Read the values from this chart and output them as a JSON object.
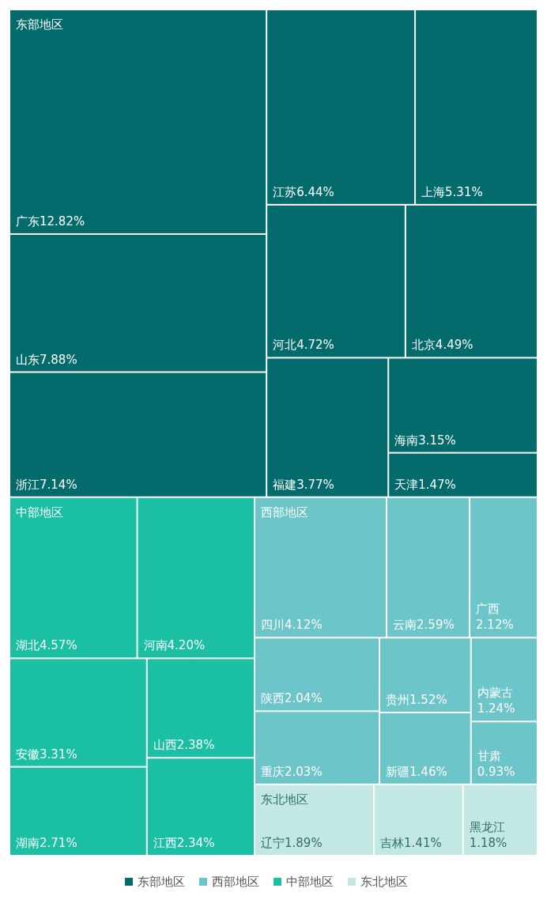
{
  "chart_data": {
    "type": "other",
    "legend": "bottom",
    "categories": [
      "广东",
      "山东",
      "浙江",
      "江苏",
      "上海",
      "河北",
      "北京",
      "福建",
      "海南",
      "天津",
      "四川",
      "云南",
      "广西",
      "陕西",
      "重庆",
      "贵州",
      "新疆",
      "内蒙古",
      "甘肃",
      "湖北",
      "河南",
      "安徽",
      "湖南",
      "山西",
      "江西",
      "辽宁",
      "吉林",
      "黑龙江"
    ],
    "series": [
      {
        "name": "东部地区",
        "color": "#036b6b",
        "values": [
          12.82,
          7.88,
          7.14,
          6.44,
          5.31,
          4.72,
          4.49,
          3.77,
          3.15,
          1.47,
          null,
          null,
          null,
          null,
          null,
          null,
          null,
          null,
          null,
          null,
          null,
          null,
          null,
          null,
          null,
          null,
          null,
          null
        ],
        "value_labels": [
          "12.82%",
          "7.88%",
          "7.14%",
          "6.44%",
          "5.31%",
          "4.72%",
          "4.49%",
          "3.77%",
          "3.15%",
          "1.47%",
          null,
          null,
          null,
          null,
          null,
          null,
          null,
          null,
          null,
          null,
          null,
          null,
          null,
          null,
          null,
          null,
          null,
          null
        ]
      },
      {
        "name": "西部地区",
        "color": "#6cc5c9",
        "values": [
          null,
          null,
          null,
          null,
          null,
          null,
          null,
          null,
          null,
          null,
          4.12,
          2.59,
          2.12,
          2.04,
          2.03,
          1.52,
          1.46,
          1.24,
          0.93,
          null,
          null,
          null,
          null,
          null,
          null,
          null,
          null,
          null
        ],
        "value_labels": [
          null,
          null,
          null,
          null,
          null,
          null,
          null,
          null,
          null,
          null,
          "4.12%",
          "2.59%",
          "2.12%",
          "2.04%",
          "2.03%",
          "1.52%",
          "1.46%",
          "1.24%",
          "0.93%",
          null,
          null,
          null,
          null,
          null,
          null,
          null,
          null,
          null
        ]
      },
      {
        "name": "中部地区",
        "color": "#1abfa4",
        "values": [
          null,
          null,
          null,
          null,
          null,
          null,
          null,
          null,
          null,
          null,
          null,
          null,
          null,
          null,
          null,
          null,
          null,
          null,
          null,
          4.57,
          4.2,
          3.31,
          2.71,
          2.38,
          2.34,
          null,
          null,
          null
        ],
        "value_labels": [
          null,
          null,
          null,
          null,
          null,
          null,
          null,
          null,
          null,
          null,
          null,
          null,
          null,
          null,
          null,
          null,
          null,
          null,
          null,
          "4.57%",
          "4.20%",
          "3.31%",
          "2.71%",
          "2.38%",
          "2.34%",
          null,
          null,
          null
        ]
      },
      {
        "name": "东北地区",
        "color": "#c3e8e3",
        "values": [
          null,
          null,
          null,
          null,
          null,
          null,
          null,
          null,
          null,
          null,
          null,
          null,
          null,
          null,
          null,
          null,
          null,
          null,
          null,
          null,
          null,
          null,
          null,
          null,
          null,
          1.89,
          1.41,
          1.18
        ],
        "value_labels": [
          null,
          null,
          null,
          null,
          null,
          null,
          null,
          null,
          null,
          null,
          null,
          null,
          null,
          null,
          null,
          null,
          null,
          null,
          null,
          null,
          null,
          null,
          null,
          null,
          null,
          "1.89%",
          "1.41%",
          "1.18%"
        ]
      }
    ]
  }
}
